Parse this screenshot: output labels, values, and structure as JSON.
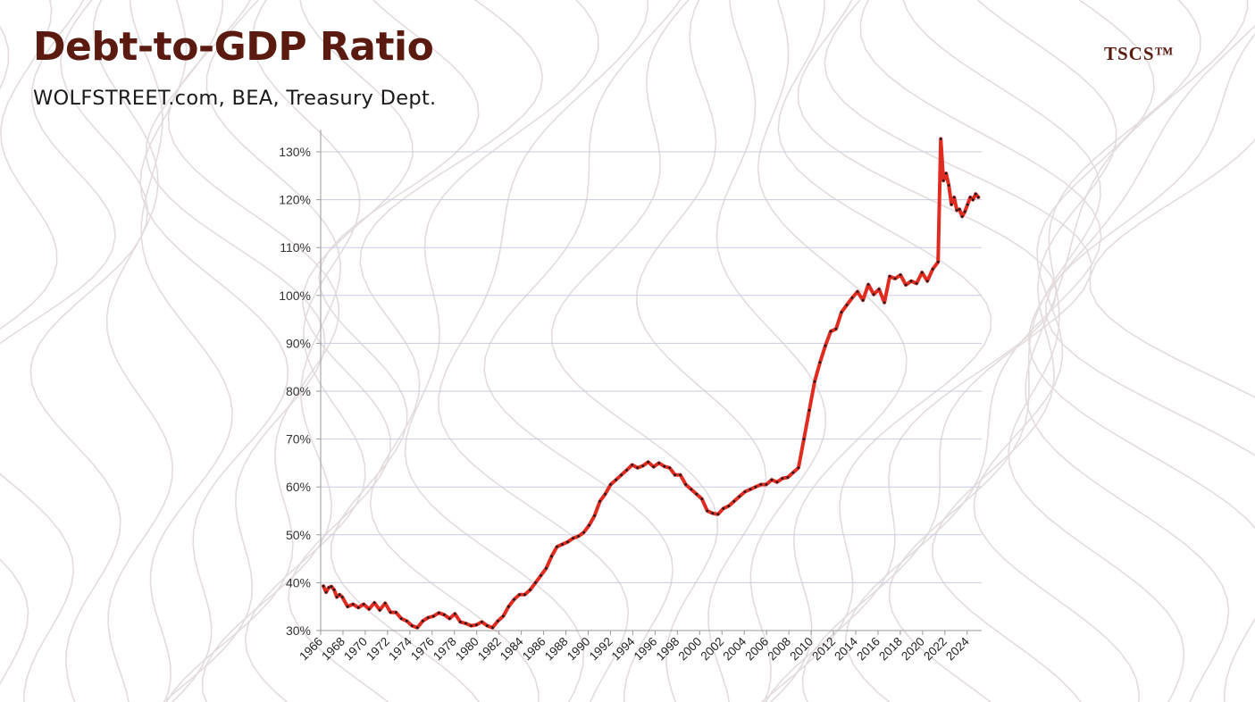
{
  "header": {
    "title": "Debt-to-GDP Ratio",
    "subtitle": "WOLFSTREET.com, BEA, Treasury Dept.",
    "brand": "TSCS™"
  },
  "background": {
    "pattern": "topographic-contour-lines",
    "line_color": "#e4dcdc"
  },
  "chart_data": {
    "type": "line",
    "title": "Debt-to-GDP Ratio",
    "subtitle": "WOLFSTREET.com, BEA, Treasury Dept.",
    "xlabel": "",
    "ylabel": "",
    "xlim": [
      1966,
      2025.3
    ],
    "ylim": [
      30,
      135
    ],
    "y_ticks": [
      30,
      40,
      50,
      60,
      70,
      80,
      90,
      100,
      110,
      120,
      130
    ],
    "y_tick_labels": [
      "30%",
      "40%",
      "50%",
      "60%",
      "70%",
      "80%",
      "90%",
      "100%",
      "110%",
      "120%",
      "130%"
    ],
    "x_ticks": [
      1966,
      1968,
      1970,
      1972,
      1974,
      1976,
      1978,
      1980,
      1982,
      1984,
      1986,
      1988,
      1990,
      1992,
      1994,
      1996,
      1998,
      2000,
      2002,
      2004,
      2006,
      2008,
      2010,
      2012,
      2014,
      2016,
      2018,
      2020,
      2022,
      2024
    ],
    "x_tick_labels": [
      "1966",
      "1968",
      "1970",
      "1972",
      "1974",
      "1976",
      "1978",
      "1980",
      "1982",
      "1984",
      "1986",
      "1988",
      "1990",
      "1992",
      "1994",
      "1996",
      "1998",
      "2000",
      "2002",
      "2004",
      "2006",
      "2008",
      "2010",
      "2012",
      "2014",
      "2016",
      "2018",
      "2020",
      "2022",
      "2024"
    ],
    "grid": true,
    "legend": "none",
    "colors": {
      "line": "#e02b20",
      "markers": "#1a1a1a",
      "grid": "#c9c9e6",
      "axis": "#999999"
    },
    "series": [
      {
        "points": [
          [
            1966.25,
            39.3
          ],
          [
            1966.5,
            38.0
          ],
          [
            1966.75,
            39.0
          ],
          [
            1967.0,
            39.2
          ],
          [
            1967.25,
            38.5
          ],
          [
            1967.5,
            37.0
          ],
          [
            1967.75,
            37.5
          ],
          [
            1968.0,
            37.0
          ],
          [
            1968.5,
            35.0
          ],
          [
            1969.0,
            35.5
          ],
          [
            1969.5,
            34.8
          ],
          [
            1970.0,
            35.5
          ],
          [
            1970.5,
            34.5
          ],
          [
            1971.0,
            35.8
          ],
          [
            1971.5,
            34.3
          ],
          [
            1972.0,
            35.7
          ],
          [
            1972.5,
            33.8
          ],
          [
            1973.0,
            33.8
          ],
          [
            1973.5,
            32.5
          ],
          [
            1974.0,
            32.0
          ],
          [
            1974.5,
            31.0
          ],
          [
            1975.0,
            30.6
          ],
          [
            1975.5,
            32.0
          ],
          [
            1976.0,
            32.7
          ],
          [
            1976.5,
            33.0
          ],
          [
            1977.0,
            33.7
          ],
          [
            1977.5,
            33.3
          ],
          [
            1978.0,
            32.5
          ],
          [
            1978.5,
            33.5
          ],
          [
            1979.0,
            31.8
          ],
          [
            1979.5,
            31.5
          ],
          [
            1980.0,
            31.0
          ],
          [
            1980.5,
            31.2
          ],
          [
            1981.0,
            31.8
          ],
          [
            1981.5,
            31.0
          ],
          [
            1982.0,
            30.6
          ],
          [
            1982.5,
            32.0
          ],
          [
            1983.0,
            33.0
          ],
          [
            1983.5,
            35.0
          ],
          [
            1984.0,
            36.5
          ],
          [
            1984.5,
            37.5
          ],
          [
            1985.0,
            37.5
          ],
          [
            1985.5,
            38.5
          ],
          [
            1986.0,
            40.0
          ],
          [
            1986.5,
            41.5
          ],
          [
            1987.0,
            43.0
          ],
          [
            1987.5,
            45.5
          ],
          [
            1988.0,
            47.5
          ],
          [
            1988.5,
            48.0
          ],
          [
            1989.0,
            48.5
          ],
          [
            1989.5,
            49.3
          ],
          [
            1990.0,
            49.7
          ],
          [
            1990.5,
            50.5
          ],
          [
            1991.0,
            52.0
          ],
          [
            1991.5,
            54.0
          ],
          [
            1992.0,
            57.0
          ],
          [
            1992.5,
            58.5
          ],
          [
            1993.0,
            60.5
          ],
          [
            1993.5,
            61.5
          ],
          [
            1994.0,
            62.5
          ],
          [
            1994.5,
            63.5
          ],
          [
            1995.0,
            64.6
          ],
          [
            1995.5,
            64.0
          ],
          [
            1996.0,
            64.4
          ],
          [
            1996.5,
            65.2
          ],
          [
            1997.0,
            64.2
          ],
          [
            1997.5,
            65.0
          ],
          [
            1998.0,
            64.3
          ],
          [
            1998.5,
            64.0
          ],
          [
            1999.0,
            62.5
          ],
          [
            1999.5,
            62.5
          ],
          [
            2000.0,
            60.5
          ],
          [
            2000.5,
            59.5
          ],
          [
            2001.0,
            58.5
          ],
          [
            2001.5,
            57.5
          ],
          [
            2002.0,
            55.0
          ],
          [
            2002.5,
            54.5
          ],
          [
            2003.0,
            54.3
          ],
          [
            2003.5,
            55.5
          ],
          [
            2004.0,
            56.0
          ],
          [
            2004.5,
            57.0
          ],
          [
            2005.0,
            58.0
          ],
          [
            2005.5,
            59.0
          ],
          [
            2006.0,
            59.5
          ],
          [
            2006.5,
            60.0
          ],
          [
            2007.0,
            60.5
          ],
          [
            2007.5,
            60.5
          ],
          [
            2008.0,
            61.5
          ],
          [
            2008.5,
            61.0
          ],
          [
            2009.0,
            61.8
          ],
          [
            2009.5,
            62.0
          ],
          [
            2010.0,
            63.0
          ],
          [
            2010.5,
            64.0
          ],
          [
            2011.0,
            70.0
          ],
          [
            2011.5,
            76.0
          ],
          [
            2012.0,
            82.0
          ],
          [
            2012.5,
            86.0
          ],
          [
            2013.0,
            89.5
          ],
          [
            2013.5,
            92.5
          ],
          [
            2014.0,
            93.0
          ],
          [
            2014.5,
            96.5
          ],
          [
            2015.0,
            98.0
          ],
          [
            2015.5,
            99.5
          ],
          [
            2016.0,
            100.8
          ],
          [
            2016.5,
            99.0
          ],
          [
            2017.0,
            102.3
          ],
          [
            2017.5,
            100.2
          ],
          [
            2018.0,
            101.3
          ],
          [
            2018.5,
            98.5
          ],
          [
            2019.0,
            104.0
          ],
          [
            2019.5,
            103.5
          ],
          [
            2020.0,
            104.3
          ],
          [
            2020.5,
            102.2
          ],
          [
            2021.0,
            103.0
          ],
          [
            2021.5,
            102.5
          ],
          [
            2022.0,
            104.8
          ],
          [
            2022.5,
            103.0
          ],
          [
            2023.0,
            105.5
          ],
          [
            2023.5,
            107.0
          ],
          [
            2023.75,
            132.7
          ],
          [
            2024.0,
            124.0
          ],
          [
            2024.25,
            125.5
          ],
          [
            2024.5,
            123.0
          ],
          [
            2024.75,
            119.0
          ],
          [
            2025.0,
            120.5
          ],
          [
            2025.25,
            117.8
          ],
          [
            2025.5,
            118.0
          ],
          [
            2025.75,
            116.5
          ],
          [
            2026.0,
            117.5
          ],
          [
            2026.25,
            119.0
          ],
          [
            2026.5,
            120.5
          ],
          [
            2026.75,
            120.0
          ],
          [
            2027.0,
            121.2
          ],
          [
            2027.25,
            120.5
          ]
        ]
      }
    ]
  }
}
